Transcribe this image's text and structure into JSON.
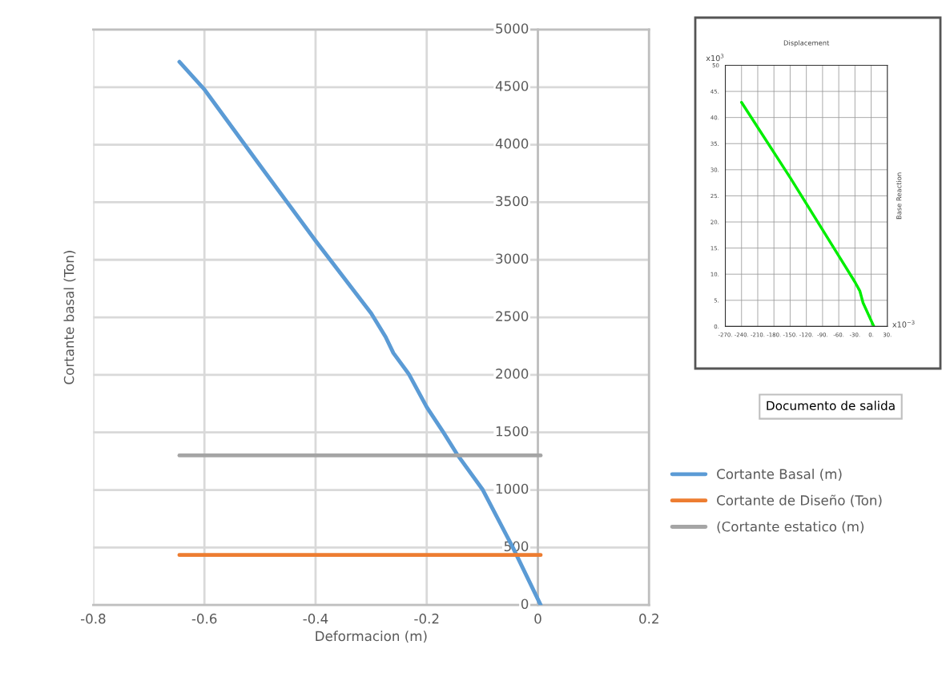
{
  "chart_data": [
    {
      "type": "line",
      "xlabel": "Deformacion (m)",
      "ylabel": "Cortante basal (Ton)",
      "xlim": [
        -0.8,
        0.2
      ],
      "xticks": [
        -0.8,
        -0.6,
        -0.4,
        -0.2,
        0,
        0.2
      ],
      "ylim": [
        0,
        5000
      ],
      "yticks": [
        0,
        500,
        1000,
        1500,
        2000,
        2500,
        3000,
        3500,
        4000,
        4500,
        5000
      ],
      "grid": true,
      "legend": "right",
      "line_style": "solid",
      "marker": "none",
      "series": [
        {
          "name": "Cortante Basal (m)",
          "color": "#5b9bd5",
          "x": [
            -0.645,
            -0.6,
            -0.5,
            -0.4,
            -0.3,
            -0.274,
            -0.26,
            -0.232,
            -0.2,
            -0.17,
            -0.144,
            -0.099,
            -0.045,
            0.005
          ],
          "values": [
            4720,
            4480,
            3820,
            3165,
            2535,
            2330,
            2190,
            2005,
            1720,
            1500,
            1300,
            1000,
            500,
            0
          ]
        },
        {
          "name": "Cortante de Diseño (Ton)",
          "color": "#ed7d31",
          "x": [
            -0.645,
            0.005
          ],
          "values": [
            435,
            435
          ]
        },
        {
          "name": "(Cortante estatico (m)",
          "color": "#a5a5a5",
          "x": [
            -0.645,
            0.005
          ],
          "values": [
            1300,
            1300
          ]
        }
      ]
    },
    {
      "type": "line",
      "title": "Displacement",
      "ylabel": "Base Reaction",
      "xlim": [
        -270,
        30
      ],
      "xticks": [
        {
          "value": -270,
          "label": "-270."
        },
        {
          "value": -240,
          "label": "-240."
        },
        {
          "value": -210,
          "label": "-210."
        },
        {
          "value": -180,
          "label": "-180."
        },
        {
          "value": -150,
          "label": "-150."
        },
        {
          "value": -120,
          "label": "-120."
        },
        {
          "value": -90,
          "label": "-90."
        },
        {
          "value": -60,
          "label": "-60."
        },
        {
          "value": -30,
          "label": "-30."
        },
        {
          "value": 0,
          "label": "0."
        },
        {
          "value": 30,
          "label": "30."
        }
      ],
      "ylim": [
        0,
        50
      ],
      "yticks": [
        {
          "value": 0,
          "label": "0."
        },
        {
          "value": 5,
          "label": "5."
        },
        {
          "value": 10,
          "label": "10."
        },
        {
          "value": 15,
          "label": "15."
        },
        {
          "value": 20,
          "label": "20."
        },
        {
          "value": 25,
          "label": "25."
        },
        {
          "value": 30,
          "label": "30."
        },
        {
          "value": 35,
          "label": "35."
        },
        {
          "value": 40,
          "label": "40."
        },
        {
          "value": 45,
          "label": "45."
        },
        {
          "value": 50,
          "label": "50"
        }
      ],
      "grid": true,
      "line_style": "solid",
      "marker": "none",
      "annotations": [
        "x10$^{3}$",
        "x10$^{−3}$",
        "Documento de salida"
      ],
      "series": [
        {
          "color": "#00ee00",
          "x": [
            -240,
            -150,
            -60,
            -30,
            -21,
            -15,
            5
          ],
          "values": [
            42.9,
            28.5,
            13.5,
            8.5,
            6.8,
            4.5,
            0
          ]
        }
      ]
    }
  ]
}
